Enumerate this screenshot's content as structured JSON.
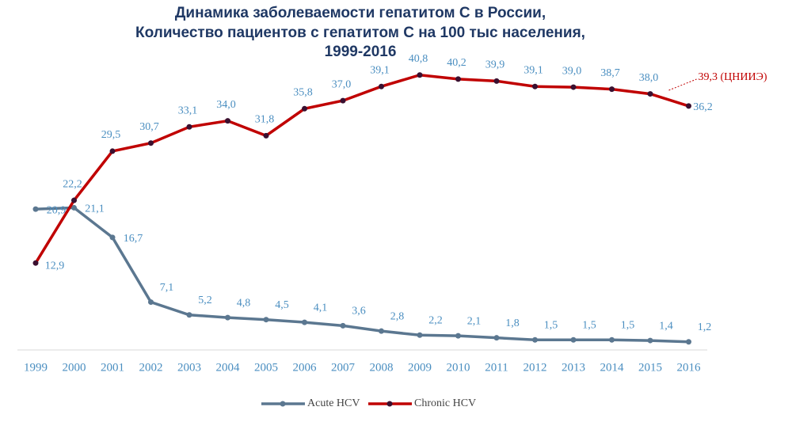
{
  "chart_data": {
    "type": "line",
    "title": [
      "Динамика заболеваемости гепатитом С в России,",
      "Количество пациентов с гепатитом С на 100 тыс населения,",
      "1999-2016"
    ],
    "categories": [
      "1999",
      "2000",
      "2001",
      "2002",
      "2003",
      "2004",
      "2005",
      "2006",
      "2007",
      "2008",
      "2009",
      "2010",
      "2011",
      "2012",
      "2013",
      "2014",
      "2015",
      "2016"
    ],
    "series": [
      {
        "name": "Acute HCV",
        "color": "#5b7790",
        "values": [
          20.9,
          21.1,
          16.7,
          7.1,
          5.2,
          4.8,
          4.5,
          4.1,
          3.6,
          2.8,
          2.2,
          2.1,
          1.8,
          1.5,
          1.5,
          1.5,
          1.4,
          1.2
        ],
        "value_labels": [
          "20,9",
          "21,1",
          "16,7",
          "7,1",
          "5,2",
          "4,8",
          "4,5",
          "4,1",
          "3,6",
          "2,8",
          "2,2",
          "2,1",
          "1,8",
          "1,5",
          "1,5",
          "1,5",
          "1,4",
          "1,2"
        ]
      },
      {
        "name": "Chronic HCV",
        "color": "#c00000",
        "values": [
          12.9,
          22.2,
          29.5,
          30.7,
          33.1,
          34.0,
          31.8,
          35.8,
          37.0,
          39.1,
          40.8,
          40.2,
          39.9,
          39.1,
          39.0,
          38.7,
          38.0,
          36.2
        ],
        "value_labels": [
          "12,9",
          "22,2",
          "29,5",
          "30,7",
          "33,1",
          "34,0",
          "31,8",
          "35,8",
          "37,0",
          "39,1",
          "40,8",
          "40,2",
          "39,9",
          "39,1",
          "39,0",
          "38,7",
          "38,0",
          "36,2"
        ]
      }
    ],
    "annotation": "39,3 (ЦНИИЭ)",
    "ylim": [
      0,
      45
    ]
  }
}
